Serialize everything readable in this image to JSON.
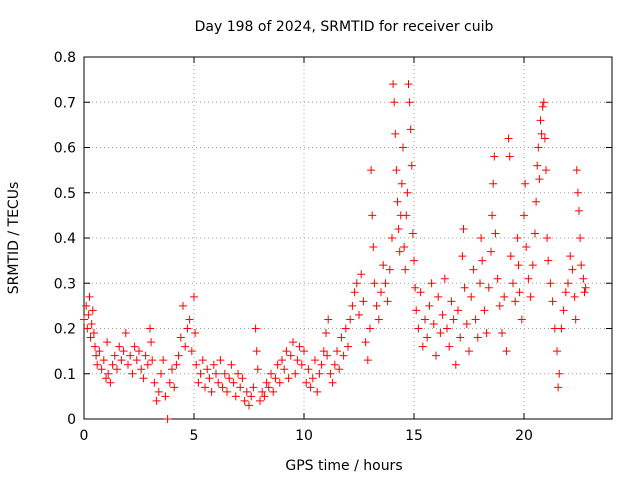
{
  "chart_data": {
    "type": "scatter",
    "title": "Day 198 of 2024, SRMTID for receiver cuib",
    "xlabel": "GPS time / hours",
    "ylabel": "SRMTID / TECUs",
    "xlim": [
      0,
      24
    ],
    "ylim": [
      0,
      0.8
    ],
    "x_ticks": [
      0,
      5,
      10,
      15,
      20
    ],
    "y_ticks": [
      0,
      0.1,
      0.2,
      0.3,
      0.4,
      0.5,
      0.6,
      0.7,
      0.8
    ],
    "x_tick_labels": [
      "0",
      "5",
      "10",
      "15",
      "20"
    ],
    "y_tick_labels": [
      "0",
      "0.1",
      "0.2",
      "0.3",
      "0.4",
      "0.5",
      "0.6",
      "0.7",
      "0.8"
    ],
    "grid": true,
    "marker": "+",
    "series": [
      {
        "name": "SRMTID",
        "color": "#ff0000",
        "points": [
          [
            0.0,
            0.22
          ],
          [
            0.1,
            0.25
          ],
          [
            0.15,
            0.2
          ],
          [
            0.2,
            0.23
          ],
          [
            0.25,
            0.27
          ],
          [
            0.3,
            0.18
          ],
          [
            0.35,
            0.21
          ],
          [
            0.4,
            0.24
          ],
          [
            0.45,
            0.19
          ],
          [
            0.5,
            0.16
          ],
          [
            0.55,
            0.14
          ],
          [
            0.6,
            0.12
          ],
          [
            0.7,
            0.15
          ],
          [
            0.8,
            0.11
          ],
          [
            0.9,
            0.13
          ],
          [
            1.0,
            0.09
          ],
          [
            1.05,
            0.17
          ],
          [
            1.1,
            0.1
          ],
          [
            1.2,
            0.08
          ],
          [
            1.3,
            0.12
          ],
          [
            1.4,
            0.14
          ],
          [
            1.5,
            0.11
          ],
          [
            1.6,
            0.16
          ],
          [
            1.7,
            0.13
          ],
          [
            1.8,
            0.15
          ],
          [
            1.9,
            0.19
          ],
          [
            2.0,
            0.12
          ],
          [
            2.1,
            0.14
          ],
          [
            2.2,
            0.1
          ],
          [
            2.3,
            0.16
          ],
          [
            2.4,
            0.13
          ],
          [
            2.5,
            0.15
          ],
          [
            2.6,
            0.11
          ],
          [
            2.7,
            0.09
          ],
          [
            2.8,
            0.14
          ],
          [
            2.9,
            0.12
          ],
          [
            3.0,
            0.2
          ],
          [
            3.05,
            0.17
          ],
          [
            3.1,
            0.13
          ],
          [
            3.2,
            0.08
          ],
          [
            3.3,
            0.04
          ],
          [
            3.4,
            0.06
          ],
          [
            3.5,
            0.1
          ],
          [
            3.6,
            0.13
          ],
          [
            3.7,
            0.05
          ],
          [
            3.8,
            0.0
          ],
          [
            3.9,
            0.08
          ],
          [
            4.0,
            0.11
          ],
          [
            4.1,
            0.07
          ],
          [
            4.2,
            0.12
          ],
          [
            4.3,
            0.14
          ],
          [
            4.4,
            0.18
          ],
          [
            4.5,
            0.25
          ],
          [
            4.6,
            0.16
          ],
          [
            4.7,
            0.2
          ],
          [
            4.8,
            0.22
          ],
          [
            4.9,
            0.15
          ],
          [
            5.0,
            0.27
          ],
          [
            5.05,
            0.19
          ],
          [
            5.1,
            0.12
          ],
          [
            5.2,
            0.08
          ],
          [
            5.3,
            0.1
          ],
          [
            5.4,
            0.13
          ],
          [
            5.5,
            0.07
          ],
          [
            5.6,
            0.11
          ],
          [
            5.7,
            0.09
          ],
          [
            5.8,
            0.06
          ],
          [
            5.9,
            0.12
          ],
          [
            6.0,
            0.1
          ],
          [
            6.1,
            0.08
          ],
          [
            6.2,
            0.13
          ],
          [
            6.3,
            0.07
          ],
          [
            6.4,
            0.1
          ],
          [
            6.5,
            0.06
          ],
          [
            6.6,
            0.09
          ],
          [
            6.7,
            0.12
          ],
          [
            6.8,
            0.08
          ],
          [
            6.9,
            0.05
          ],
          [
            7.0,
            0.1
          ],
          [
            7.1,
            0.07
          ],
          [
            7.2,
            0.09
          ],
          [
            7.3,
            0.04
          ],
          [
            7.4,
            0.06
          ],
          [
            7.5,
            0.03
          ],
          [
            7.6,
            0.05
          ],
          [
            7.7,
            0.07
          ],
          [
            7.8,
            0.2
          ],
          [
            7.85,
            0.15
          ],
          [
            7.9,
            0.11
          ],
          [
            8.0,
            0.04
          ],
          [
            8.1,
            0.06
          ],
          [
            8.2,
            0.05
          ],
          [
            8.3,
            0.08
          ],
          [
            8.4,
            0.07
          ],
          [
            8.5,
            0.1
          ],
          [
            8.6,
            0.06
          ],
          [
            8.7,
            0.09
          ],
          [
            8.8,
            0.12
          ],
          [
            8.9,
            0.08
          ],
          [
            9.0,
            0.13
          ],
          [
            9.1,
            0.11
          ],
          [
            9.2,
            0.15
          ],
          [
            9.3,
            0.09
          ],
          [
            9.4,
            0.14
          ],
          [
            9.5,
            0.17
          ],
          [
            9.6,
            0.1
          ],
          [
            9.7,
            0.13
          ],
          [
            9.8,
            0.16
          ],
          [
            9.9,
            0.12
          ],
          [
            10.0,
            0.15
          ],
          [
            10.1,
            0.08
          ],
          [
            10.2,
            0.11
          ],
          [
            10.3,
            0.07
          ],
          [
            10.4,
            0.09
          ],
          [
            10.5,
            0.13
          ],
          [
            10.6,
            0.06
          ],
          [
            10.7,
            0.1
          ],
          [
            10.8,
            0.12
          ],
          [
            10.9,
            0.15
          ],
          [
            11.0,
            0.19
          ],
          [
            11.05,
            0.14
          ],
          [
            11.1,
            0.22
          ],
          [
            11.2,
            0.1
          ],
          [
            11.3,
            0.08
          ],
          [
            11.4,
            0.12
          ],
          [
            11.5,
            0.15
          ],
          [
            11.6,
            0.11
          ],
          [
            11.7,
            0.18
          ],
          [
            11.8,
            0.14
          ],
          [
            11.9,
            0.2
          ],
          [
            12.0,
            0.16
          ],
          [
            12.1,
            0.22
          ],
          [
            12.2,
            0.25
          ],
          [
            12.3,
            0.28
          ],
          [
            12.4,
            0.3
          ],
          [
            12.5,
            0.23
          ],
          [
            12.6,
            0.32
          ],
          [
            12.7,
            0.26
          ],
          [
            12.8,
            0.17
          ],
          [
            12.9,
            0.13
          ],
          [
            13.0,
            0.2
          ],
          [
            13.05,
            0.55
          ],
          [
            13.1,
            0.45
          ],
          [
            13.15,
            0.38
          ],
          [
            13.2,
            0.3
          ],
          [
            13.3,
            0.25
          ],
          [
            13.4,
            0.22
          ],
          [
            13.5,
            0.28
          ],
          [
            13.6,
            0.34
          ],
          [
            13.7,
            0.3
          ],
          [
            13.8,
            0.26
          ],
          [
            13.9,
            0.33
          ],
          [
            14.0,
            0.4
          ],
          [
            14.05,
            0.74
          ],
          [
            14.1,
            0.7
          ],
          [
            14.15,
            0.63
          ],
          [
            14.2,
            0.55
          ],
          [
            14.25,
            0.48
          ],
          [
            14.3,
            0.42
          ],
          [
            14.35,
            0.37
          ],
          [
            14.4,
            0.45
          ],
          [
            14.45,
            0.52
          ],
          [
            14.5,
            0.6
          ],
          [
            14.55,
            0.38
          ],
          [
            14.6,
            0.33
          ],
          [
            14.65,
            0.45
          ],
          [
            14.7,
            0.5
          ],
          [
            14.75,
            0.74
          ],
          [
            14.8,
            0.7
          ],
          [
            14.85,
            0.64
          ],
          [
            14.9,
            0.56
          ],
          [
            14.95,
            0.41
          ],
          [
            15.0,
            0.35
          ],
          [
            15.05,
            0.29
          ],
          [
            15.1,
            0.24
          ],
          [
            15.2,
            0.2
          ],
          [
            15.3,
            0.28
          ],
          [
            15.4,
            0.16
          ],
          [
            15.5,
            0.22
          ],
          [
            15.6,
            0.18
          ],
          [
            15.7,
            0.25
          ],
          [
            15.8,
            0.3
          ],
          [
            15.9,
            0.21
          ],
          [
            16.0,
            0.14
          ],
          [
            16.1,
            0.27
          ],
          [
            16.2,
            0.19
          ],
          [
            16.3,
            0.23
          ],
          [
            16.4,
            0.31
          ],
          [
            16.5,
            0.2
          ],
          [
            16.6,
            0.16
          ],
          [
            16.7,
            0.26
          ],
          [
            16.8,
            0.22
          ],
          [
            16.9,
            0.12
          ],
          [
            17.0,
            0.24
          ],
          [
            17.1,
            0.18
          ],
          [
            17.2,
            0.36
          ],
          [
            17.25,
            0.42
          ],
          [
            17.3,
            0.29
          ],
          [
            17.4,
            0.21
          ],
          [
            17.5,
            0.15
          ],
          [
            17.6,
            0.27
          ],
          [
            17.7,
            0.33
          ],
          [
            17.8,
            0.22
          ],
          [
            17.9,
            0.18
          ],
          [
            18.0,
            0.3
          ],
          [
            18.05,
            0.4
          ],
          [
            18.1,
            0.35
          ],
          [
            18.2,
            0.24
          ],
          [
            18.3,
            0.19
          ],
          [
            18.4,
            0.29
          ],
          [
            18.5,
            0.37
          ],
          [
            18.55,
            0.45
          ],
          [
            18.6,
            0.52
          ],
          [
            18.65,
            0.58
          ],
          [
            18.7,
            0.41
          ],
          [
            18.8,
            0.31
          ],
          [
            18.9,
            0.25
          ],
          [
            19.0,
            0.19
          ],
          [
            19.1,
            0.27
          ],
          [
            19.2,
            0.15
          ],
          [
            19.3,
            0.62
          ],
          [
            19.35,
            0.58
          ],
          [
            19.4,
            0.36
          ],
          [
            19.5,
            0.3
          ],
          [
            19.6,
            0.26
          ],
          [
            19.7,
            0.4
          ],
          [
            19.75,
            0.34
          ],
          [
            19.8,
            0.28
          ],
          [
            19.9,
            0.22
          ],
          [
            20.0,
            0.45
          ],
          [
            20.05,
            0.52
          ],
          [
            20.1,
            0.38
          ],
          [
            20.2,
            0.31
          ],
          [
            20.3,
            0.27
          ],
          [
            20.4,
            0.34
          ],
          [
            20.5,
            0.41
          ],
          [
            20.55,
            0.48
          ],
          [
            20.6,
            0.56
          ],
          [
            20.65,
            0.6
          ],
          [
            20.7,
            0.53
          ],
          [
            20.75,
            0.66
          ],
          [
            20.8,
            0.63
          ],
          [
            20.85,
            0.69
          ],
          [
            20.9,
            0.7
          ],
          [
            20.95,
            0.62
          ],
          [
            21.0,
            0.55
          ],
          [
            21.05,
            0.4
          ],
          [
            21.1,
            0.35
          ],
          [
            21.2,
            0.3
          ],
          [
            21.3,
            0.26
          ],
          [
            21.4,
            0.2
          ],
          [
            21.5,
            0.15
          ],
          [
            21.55,
            0.07
          ],
          [
            21.6,
            0.1
          ],
          [
            21.7,
            0.2
          ],
          [
            21.8,
            0.24
          ],
          [
            21.9,
            0.28
          ],
          [
            22.0,
            0.3
          ],
          [
            22.1,
            0.36
          ],
          [
            22.2,
            0.33
          ],
          [
            22.3,
            0.27
          ],
          [
            22.35,
            0.22
          ],
          [
            22.4,
            0.55
          ],
          [
            22.45,
            0.5
          ],
          [
            22.5,
            0.46
          ],
          [
            22.55,
            0.4
          ],
          [
            22.6,
            0.34
          ],
          [
            22.7,
            0.31
          ],
          [
            22.75,
            0.28
          ],
          [
            22.8,
            0.29
          ]
        ]
      }
    ]
  }
}
